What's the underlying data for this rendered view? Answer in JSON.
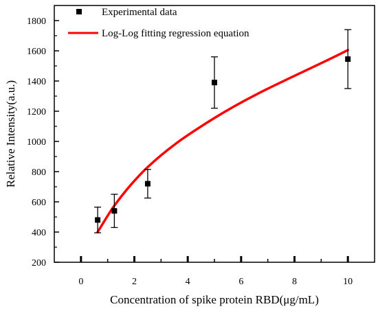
{
  "chart_data": {
    "type": "scatter",
    "xlabel": "Concentration of spike protein RBD(μg/mL)",
    "ylabel": "Relative Intensity(a.u.)",
    "xlim": [
      -1,
      11
    ],
    "ylim": [
      200,
      1900
    ],
    "x_ticks": [
      0,
      2,
      4,
      6,
      8,
      10
    ],
    "y_ticks": [
      200,
      400,
      600,
      800,
      1000,
      1200,
      1400,
      1600,
      1800
    ],
    "grid": false,
    "legend_position": "top-left",
    "series": [
      {
        "name": "Experimental data",
        "kind": "points_with_error_bars",
        "color": "#000000",
        "x": [
          0.625,
          1.25,
          2.5,
          5,
          10
        ],
        "y": [
          480,
          540,
          720,
          1390,
          1545
        ],
        "error": [
          85,
          110,
          95,
          170,
          195
        ]
      },
      {
        "name": "Log-Log fitting regression equation",
        "kind": "fit_curve",
        "color": "#ff0000",
        "x": [
          0.625,
          1.25,
          2.5,
          5,
          10
        ],
        "y": [
          400,
          575,
          830,
          1155,
          1605
        ]
      }
    ]
  }
}
